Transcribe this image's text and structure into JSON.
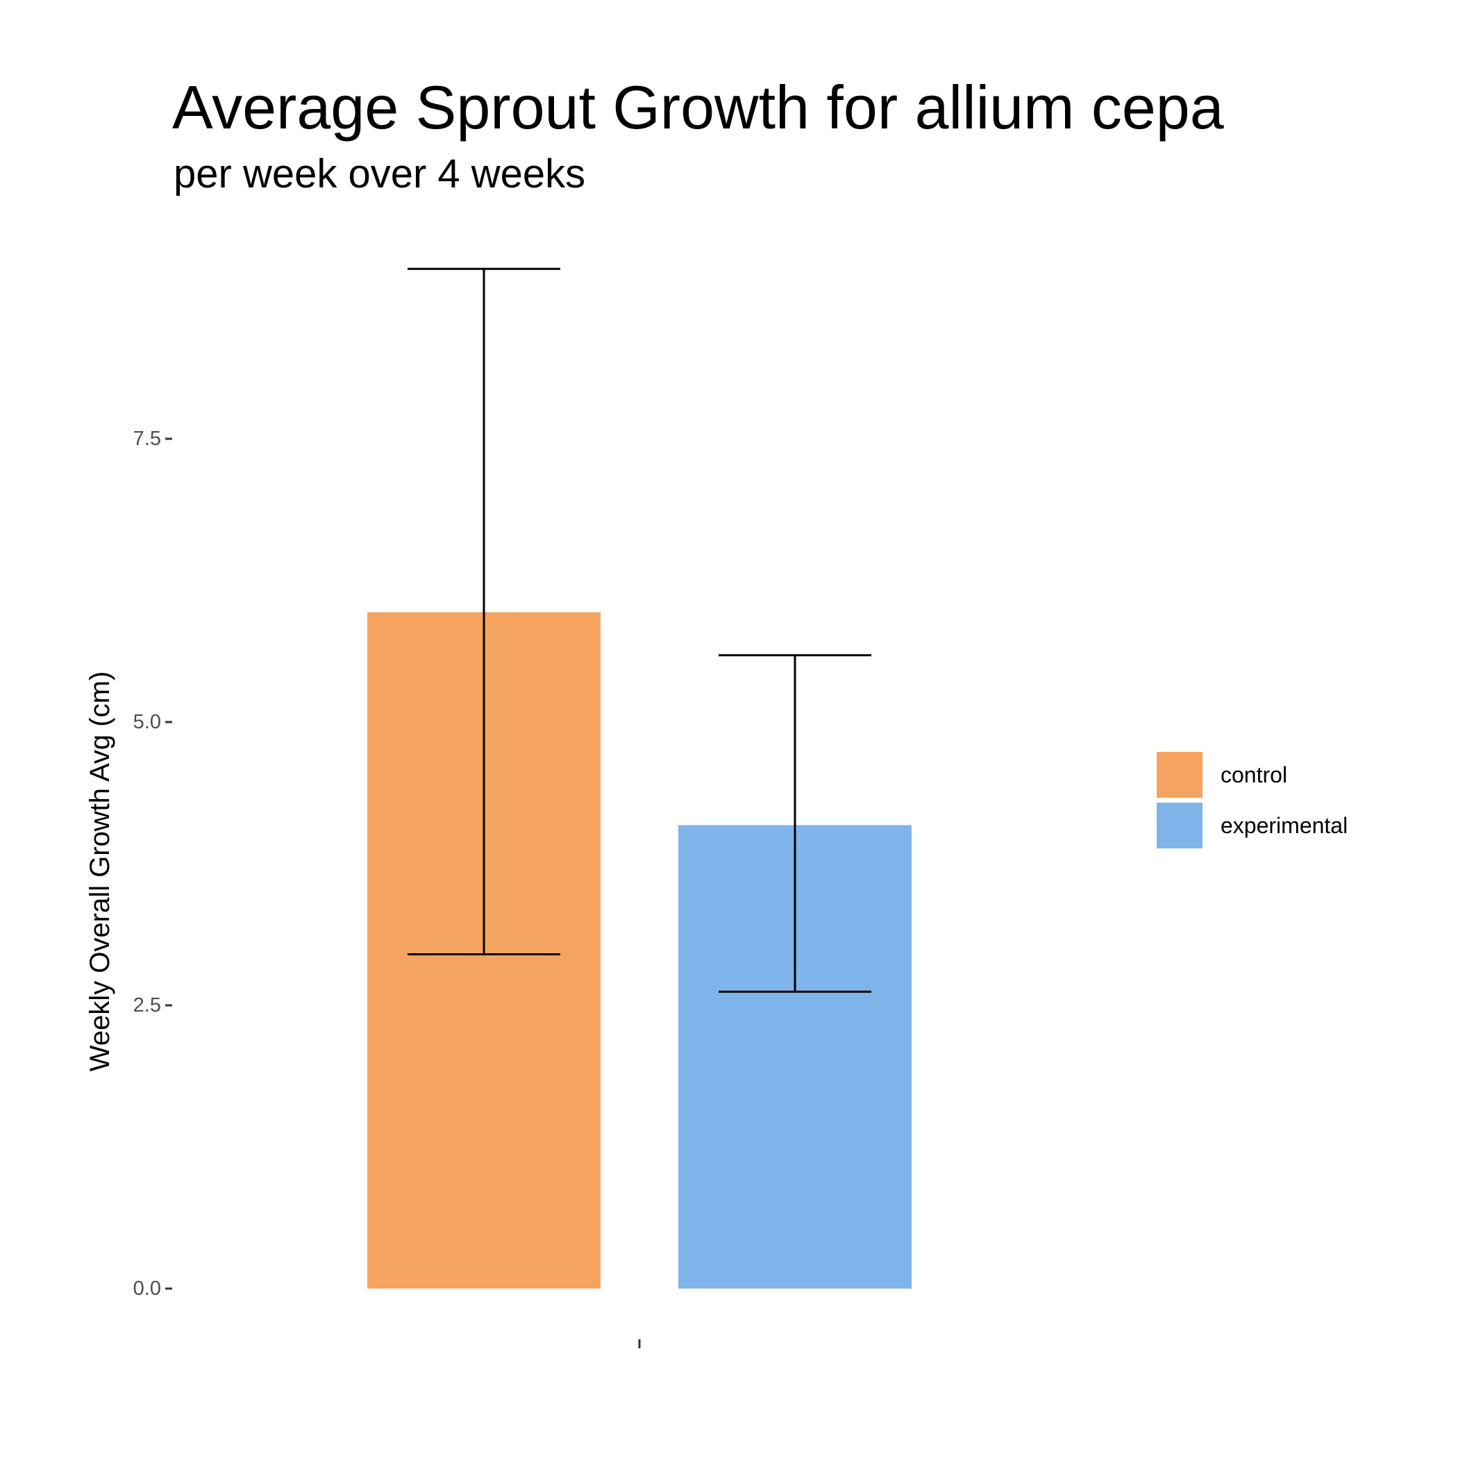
{
  "chart_data": {
    "type": "bar",
    "title": "Average Sprout Growth for allium cepa",
    "subtitle": "per week over 4 weeks",
    "xlabel": "",
    "ylabel": "Weekly Overall Growth Avg (cm)",
    "ylim": [
      0,
      10
    ],
    "y_ticks": [
      0,
      2.5,
      5,
      7.5
    ],
    "y_tick_labels": [
      "0.0",
      "2.5",
      "5.0",
      "7.5"
    ],
    "categories": [
      ""
    ],
    "x_tick_labels": [
      ""
    ],
    "series": [
      {
        "name": "control",
        "values": [
          5.97
        ],
        "error_low": [
          2.95
        ],
        "error_high": [
          9.0
        ],
        "color": "#F4A460"
      },
      {
        "name": "experimental",
        "values": [
          4.09
        ],
        "error_low": [
          2.62
        ],
        "error_high": [
          5.59
        ],
        "color": "#7EB4EA"
      }
    ],
    "grid": false,
    "legend_position": "right"
  }
}
